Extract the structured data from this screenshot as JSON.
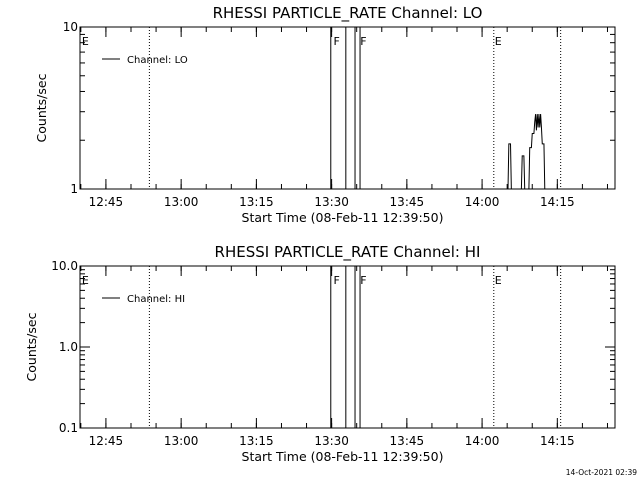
{
  "chart_data": [
    {
      "type": "line",
      "title": "RHESSI PARTICLE_RATE Channel: LO",
      "xlabel": "Start Time (08-Feb-11 12:39:50)",
      "ylabel": "Counts/sec",
      "y_scale": "log",
      "ylim": [
        1,
        10
      ],
      "y_ticks": [
        {
          "value": 1,
          "label": "1"
        },
        {
          "value": 10,
          "label": "10"
        }
      ],
      "x_range": [
        "12:39:50",
        "14:26:30"
      ],
      "x_ticks": [
        "12:45",
        "13:00",
        "13:15",
        "13:30",
        "13:45",
        "14:00",
        "14:15"
      ],
      "legend": {
        "placement": "top-left",
        "label": "Channel: LO"
      },
      "flags": [
        {
          "label": "E",
          "time": "12:40:00",
          "line": false
        },
        {
          "label": "",
          "time": "12:53:40",
          "line": true
        },
        {
          "label": "F",
          "time": "13:30:10",
          "line": false
        },
        {
          "label": "F",
          "time": "13:35:30",
          "line": false
        },
        {
          "label": "E",
          "time": "14:02:20",
          "line": true
        },
        {
          "label": "",
          "time": "14:15:40",
          "line": true
        }
      ],
      "gaps": [
        {
          "start": "13:29:50",
          "end": "13:32:50"
        },
        {
          "start": "13:34:40",
          "end": "13:35:40"
        }
      ],
      "series": [
        {
          "points": [
            [
              "14:05:10",
              1
            ],
            [
              "14:05:20",
              1.9
            ],
            [
              "14:05:40",
              1.9
            ],
            [
              "14:05:50",
              1
            ],
            [
              "14:07:50",
              1
            ],
            [
              "14:08:00",
              1.6
            ],
            [
              "14:08:20",
              1.6
            ],
            [
              "14:08:30",
              1
            ],
            [
              "14:09:20",
              1
            ],
            [
              "14:09:30",
              1.8
            ],
            [
              "14:09:50",
              1.8
            ],
            [
              "14:10:00",
              2.2
            ],
            [
              "14:10:20",
              2.2
            ],
            [
              "14:10:30",
              2.6
            ],
            [
              "14:10:40",
              2.9
            ],
            [
              "14:10:50",
              2.3
            ],
            [
              "14:11:00",
              2.9
            ],
            [
              "14:11:10",
              2.4
            ],
            [
              "14:11:20",
              2.9
            ],
            [
              "14:11:30",
              2.4
            ],
            [
              "14:11:40",
              2.9
            ],
            [
              "14:11:50",
              2.4
            ],
            [
              "14:12:00",
              1.9
            ],
            [
              "14:12:20",
              1.9
            ],
            [
              "14:12:30",
              1
            ],
            [
              "14:13:30",
              1
            ]
          ]
        }
      ]
    },
    {
      "type": "line",
      "title": "RHESSI PARTICLE_RATE Channel: HI",
      "xlabel": "Start Time (08-Feb-11 12:39:50)",
      "ylabel": "Counts/sec",
      "y_scale": "log",
      "ylim": [
        0.1,
        10
      ],
      "y_ticks": [
        {
          "value": 0.1,
          "label": "0.1"
        },
        {
          "value": 1,
          "label": "1.0"
        },
        {
          "value": 10,
          "label": "10.0"
        }
      ],
      "x_range": [
        "12:39:50",
        "14:26:30"
      ],
      "x_ticks": [
        "12:45",
        "13:00",
        "13:15",
        "13:30",
        "13:45",
        "14:00",
        "14:15"
      ],
      "legend": {
        "placement": "top-left",
        "label": "Channel: HI"
      },
      "flags": [
        {
          "label": "E",
          "time": "12:40:00",
          "line": false
        },
        {
          "label": "",
          "time": "12:53:40",
          "line": true
        },
        {
          "label": "F",
          "time": "13:30:10",
          "line": false
        },
        {
          "label": "F",
          "time": "13:35:30",
          "line": false
        },
        {
          "label": "E",
          "time": "14:02:20",
          "line": true
        },
        {
          "label": "",
          "time": "14:15:40",
          "line": true
        }
      ],
      "gaps": [
        {
          "start": "13:29:50",
          "end": "13:32:50"
        },
        {
          "start": "13:34:40",
          "end": "13:35:40"
        }
      ],
      "series": [
        {
          "points": []
        }
      ]
    }
  ],
  "timestamp": "14-Oct-2021 02:39"
}
